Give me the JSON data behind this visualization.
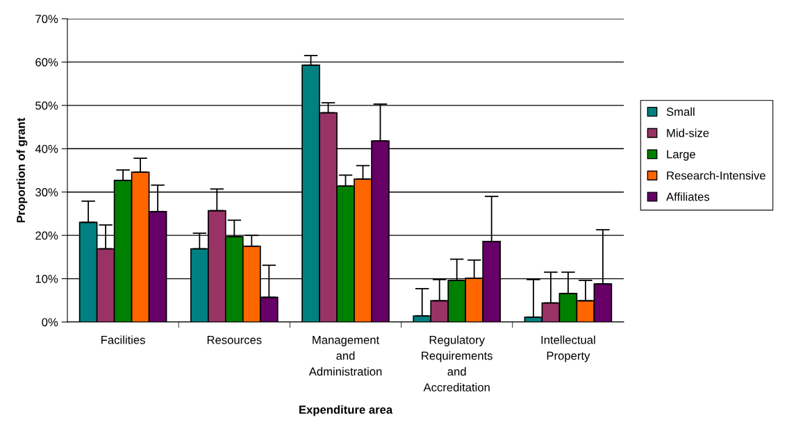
{
  "chart_data": {
    "type": "bar",
    "xlabel": "Expenditure area",
    "ylabel": "Proportion of grant",
    "categories": [
      "Facilities",
      "Resources",
      "Management\nand\nAdministration",
      "Regulatory\nRequirements\nand\nAccreditation",
      "Intellectual\nProperty"
    ],
    "series": [
      {
        "name": "Small",
        "color": "#008080",
        "values": [
          23.0,
          16.9,
          59.3,
          1.4,
          1.1
        ],
        "errors": [
          [
            23.0,
            27.9
          ],
          [
            16.9,
            20.5
          ],
          [
            59.3,
            61.5
          ],
          [
            1.4,
            7.7
          ],
          [
            1.1,
            9.8
          ]
        ]
      },
      {
        "name": "Mid-size",
        "color": "#993366",
        "values": [
          16.9,
          25.7,
          48.3,
          4.9,
          4.4
        ],
        "errors": [
          [
            16.9,
            22.4
          ],
          [
            25.7,
            30.7
          ],
          [
            48.3,
            50.6
          ],
          [
            4.9,
            9.8
          ],
          [
            4.4,
            11.5
          ]
        ]
      },
      {
        "name": "Large",
        "color": "#008000",
        "values": [
          32.7,
          19.7,
          31.4,
          9.6,
          6.6
        ],
        "errors": [
          [
            32.7,
            35.1
          ],
          [
            19.7,
            23.5
          ],
          [
            31.4,
            33.9
          ],
          [
            9.6,
            14.5
          ],
          [
            6.6,
            11.5
          ]
        ]
      },
      {
        "name": "Research-Intensive",
        "color": "#ff6600",
        "values": [
          34.6,
          17.5,
          33.0,
          10.1,
          4.9
        ],
        "errors": [
          [
            34.6,
            37.8
          ],
          [
            17.5,
            20.0
          ],
          [
            33.0,
            36.1
          ],
          [
            10.1,
            14.3
          ],
          [
            4.9,
            9.6
          ]
        ]
      },
      {
        "name": "Affiliates",
        "color": "#660066",
        "values": [
          25.5,
          5.7,
          41.8,
          18.6,
          8.8
        ],
        "errors": [
          [
            25.5,
            31.6
          ],
          [
            5.7,
            13.1
          ],
          [
            41.8,
            50.3
          ],
          [
            18.6,
            29.0
          ],
          [
            8.8,
            21.3
          ]
        ]
      }
    ],
    "ylim": [
      0,
      70
    ],
    "yticks": [
      {
        "value": 0,
        "label": "0%"
      },
      {
        "value": 10,
        "label": "10%"
      },
      {
        "value": 20,
        "label": "20%"
      },
      {
        "value": 30,
        "label": "30%"
      },
      {
        "value": 40,
        "label": "40%"
      },
      {
        "value": 50,
        "label": "50%"
      },
      {
        "value": 60,
        "label": "60%"
      },
      {
        "value": 70,
        "label": "70%"
      }
    ],
    "grid": "y",
    "legend": "right"
  }
}
